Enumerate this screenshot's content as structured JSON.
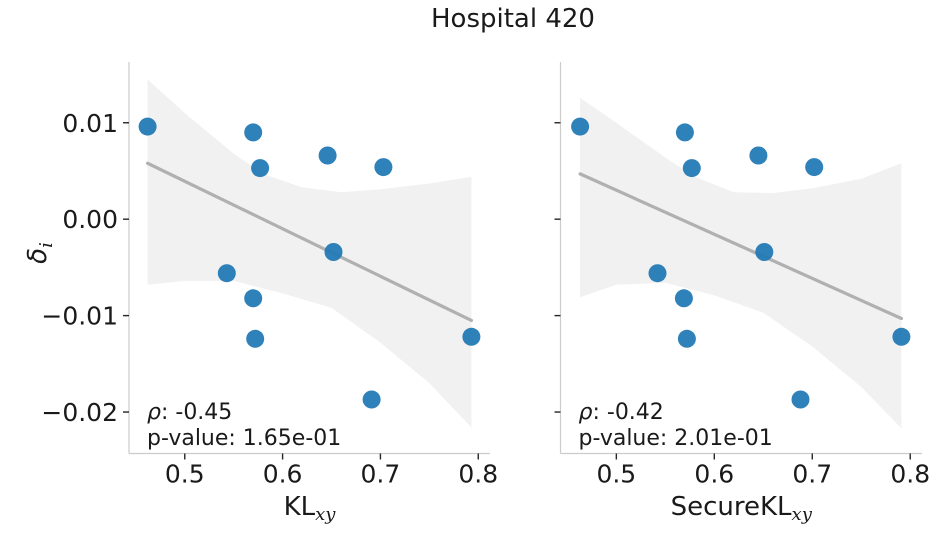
{
  "title": "Hospital 420",
  "ylabel": {
    "base": "δ",
    "sub": "i"
  },
  "colors": {
    "point": "#1f77b4",
    "regression_line": "#b0b0b0",
    "confidence_band": "#f1f1f1",
    "spine": "#cccccc",
    "tick_mark": "#262626",
    "text": "#1a1a1a"
  },
  "chart_data": {
    "type": "scatter",
    "title": "Hospital 420",
    "ylabel": "δ_i",
    "xlim": [
      0.443,
      0.812
    ],
    "ylim": [
      -0.0243,
      0.0163
    ],
    "grid": false,
    "x_ticks": {
      "values": [
        0.5,
        0.6,
        0.7,
        0.8
      ],
      "labels": [
        "0.5",
        "0.6",
        "0.7",
        "0.8"
      ]
    },
    "y_ticks": {
      "values": [
        0.01,
        0.0,
        -0.01,
        -0.02
      ],
      "labels": [
        "0.01",
        "0.00",
        "−0.01",
        "−0.02"
      ]
    },
    "panels": [
      {
        "xlabel": {
          "base": "KL",
          "sub": "xy"
        },
        "stats": {
          "rho": "ρ: -0.45",
          "pvalue": "p-value: 1.65e-01"
        },
        "points": {
          "x": [
            0.462,
            0.57,
            0.577,
            0.646,
            0.703,
            0.652,
            0.543,
            0.57,
            0.572,
            0.793,
            0.691
          ],
          "y": [
            0.0096,
            0.009,
            0.0053,
            0.0066,
            0.0054,
            -0.0034,
            -0.0056,
            -0.0082,
            -0.0124,
            -0.0122,
            -0.0187
          ]
        },
        "regression_line": {
          "x": [
            0.462,
            0.793
          ],
          "y": [
            0.0058,
            -0.0105
          ]
        },
        "confidence_band": {
          "upper": [
            [
              0.462,
              0.0145
            ],
            [
              0.5,
              0.011
            ],
            [
              0.55,
              0.0068
            ],
            [
              0.58,
              0.0047
            ],
            [
              0.62,
              0.0033
            ],
            [
              0.66,
              0.0028
            ],
            [
              0.7,
              0.0031
            ],
            [
              0.75,
              0.0037
            ],
            [
              0.793,
              0.0044
            ]
          ],
          "lower": [
            [
              0.462,
              -0.0068
            ],
            [
              0.5,
              -0.0064
            ],
            [
              0.55,
              -0.0064
            ],
            [
              0.6,
              -0.0077
            ],
            [
              0.65,
              -0.0092
            ],
            [
              0.7,
              -0.0128
            ],
            [
              0.75,
              -0.017
            ],
            [
              0.793,
              -0.0216
            ]
          ]
        }
      },
      {
        "xlabel": {
          "base": "SecureKL",
          "sub": "xy"
        },
        "stats": {
          "rho": "ρ: -0.42",
          "pvalue": "p-value: 2.01e-01"
        },
        "points": {
          "x": [
            0.463,
            0.57,
            0.577,
            0.645,
            0.702,
            0.651,
            0.542,
            0.569,
            0.572,
            0.791,
            0.688
          ],
          "y": [
            0.0096,
            0.009,
            0.0053,
            0.0066,
            0.0054,
            -0.0034,
            -0.0056,
            -0.0082,
            -0.0124,
            -0.0122,
            -0.0187
          ]
        },
        "regression_line": {
          "x": [
            0.463,
            0.791
          ],
          "y": [
            0.0047,
            -0.0103
          ]
        },
        "confidence_band": {
          "upper": [
            [
              0.463,
              0.0126
            ],
            [
              0.5,
              0.01
            ],
            [
              0.55,
              0.0064
            ],
            [
              0.58,
              0.0044
            ],
            [
              0.62,
              0.0028
            ],
            [
              0.66,
              0.0027
            ],
            [
              0.7,
              0.0032
            ],
            [
              0.75,
              0.0042
            ],
            [
              0.791,
              0.0058
            ]
          ],
          "lower": [
            [
              0.463,
              -0.0081
            ],
            [
              0.5,
              -0.0068
            ],
            [
              0.55,
              -0.0066
            ],
            [
              0.6,
              -0.0079
            ],
            [
              0.65,
              -0.0097
            ],
            [
              0.7,
              -0.0132
            ],
            [
              0.75,
              -0.0174
            ],
            [
              0.791,
              -0.0217
            ]
          ]
        }
      }
    ]
  }
}
